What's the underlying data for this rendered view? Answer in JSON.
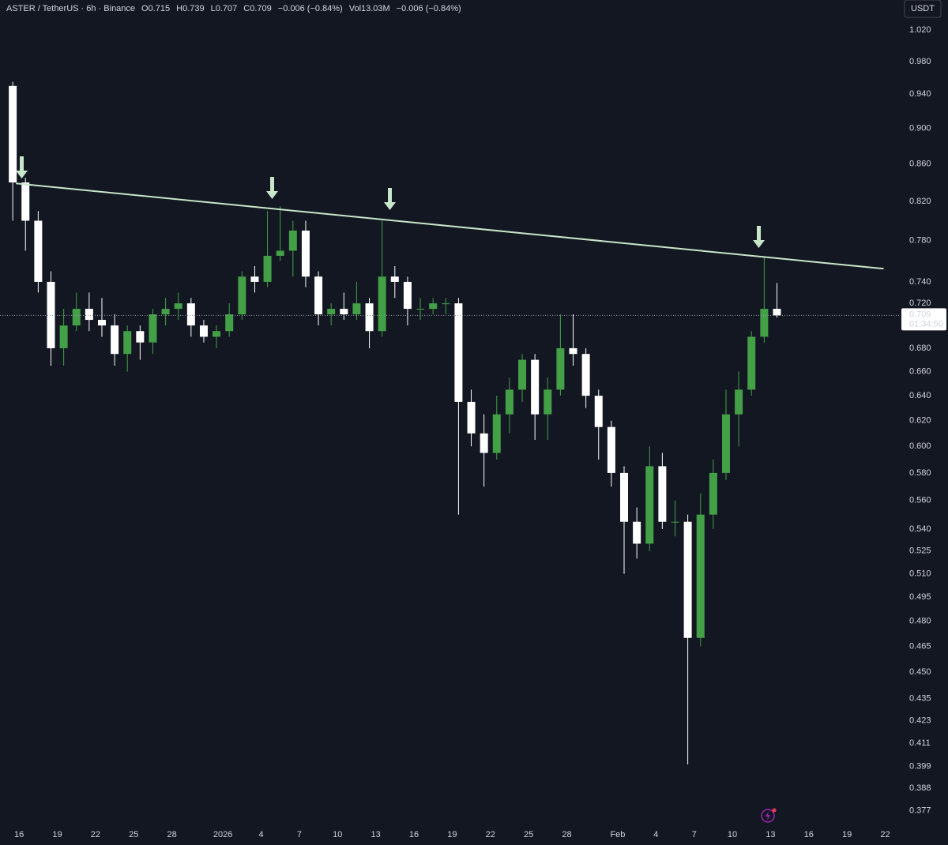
{
  "chart_data": {
    "type": "candlestick",
    "header": [
      "ASTER / TetherUS · 6h · Binance",
      "O0.715",
      "H0.739",
      "L0.707",
      "C0.709",
      "−0.006 (−0.84%)",
      "Vol13.03M",
      "−0.006 (−0.84%)"
    ],
    "currency": "USDT",
    "countdown": "01:34:50",
    "log_scale": true,
    "up_color": "#43a047",
    "down_color": "#ffffff",
    "x": [
      "2025-12-15",
      "2025-12-16",
      "2025-12-17",
      "2025-12-18",
      "2025-12-19",
      "2025-12-20",
      "2025-12-21",
      "2025-12-22",
      "2025-12-23",
      "2025-12-24",
      "2025-12-25",
      "2025-12-26",
      "2025-12-27",
      "2025-12-28",
      "2025-12-29",
      "2025-12-30",
      "2025-12-31",
      "2026-01-01",
      "2026-01-02",
      "2026-01-03",
      "2026-01-04",
      "2026-01-05",
      "2026-01-06",
      "2026-01-07",
      "2026-01-08",
      "2026-01-09",
      "2026-01-10",
      "2026-01-11",
      "2026-01-12",
      "2026-01-13",
      "2026-01-14",
      "2026-01-15",
      "2026-01-16",
      "2026-01-17",
      "2026-01-18",
      "2026-01-19",
      "2026-01-20",
      "2026-01-21",
      "2026-01-22",
      "2026-01-23",
      "2026-01-24",
      "2026-01-25",
      "2026-01-26",
      "2026-01-27",
      "2026-01-28",
      "2026-01-29",
      "2026-01-30",
      "2026-01-31",
      "2026-02-01",
      "2026-02-02",
      "2026-02-03",
      "2026-02-04",
      "2026-02-05",
      "2026-02-06",
      "2026-02-07",
      "2026-02-08",
      "2026-02-09",
      "2026-02-10",
      "2026-02-11",
      "2026-02-12",
      "2026-02-13"
    ],
    "open": [
      0.95,
      0.84,
      0.8,
      0.74,
      0.68,
      0.7,
      0.715,
      0.705,
      0.7,
      0.675,
      0.695,
      0.685,
      0.71,
      0.715,
      0.72,
      0.7,
      0.69,
      0.695,
      0.71,
      0.745,
      0.74,
      0.765,
      0.77,
      0.79,
      0.745,
      0.71,
      0.715,
      0.71,
      0.72,
      0.695,
      0.745,
      0.74,
      0.715,
      0.715,
      0.72,
      0.72,
      0.635,
      0.61,
      0.595,
      0.625,
      0.645,
      0.67,
      0.625,
      0.645,
      0.68,
      0.675,
      0.64,
      0.615,
      0.58,
      0.545,
      0.53,
      0.585,
      0.545,
      0.545,
      0.47,
      0.55,
      0.58,
      0.625,
      0.645,
      0.69,
      0.715
    ],
    "high": [
      0.955,
      0.845,
      0.81,
      0.75,
      0.715,
      0.73,
      0.73,
      0.725,
      0.71,
      0.7,
      0.7,
      0.715,
      0.725,
      0.73,
      0.725,
      0.705,
      0.7,
      0.72,
      0.75,
      0.755,
      0.81,
      0.815,
      0.8,
      0.8,
      0.75,
      0.72,
      0.73,
      0.74,
      0.725,
      0.8,
      0.755,
      0.745,
      0.725,
      0.725,
      0.725,
      0.725,
      0.645,
      0.625,
      0.64,
      0.655,
      0.675,
      0.675,
      0.655,
      0.71,
      0.71,
      0.68,
      0.645,
      0.62,
      0.585,
      0.555,
      0.6,
      0.595,
      0.56,
      0.55,
      0.565,
      0.59,
      0.645,
      0.66,
      0.695,
      0.765,
      0.739
    ],
    "low": [
      0.8,
      0.77,
      0.73,
      0.665,
      0.665,
      0.695,
      0.695,
      0.69,
      0.665,
      0.66,
      0.67,
      0.675,
      0.7,
      0.705,
      0.69,
      0.685,
      0.68,
      0.69,
      0.705,
      0.73,
      0.735,
      0.76,
      0.745,
      0.735,
      0.7,
      0.7,
      0.705,
      0.705,
      0.68,
      0.69,
      0.725,
      0.7,
      0.705,
      0.71,
      0.71,
      0.55,
      0.6,
      0.57,
      0.59,
      0.61,
      0.635,
      0.605,
      0.605,
      0.64,
      0.665,
      0.63,
      0.59,
      0.57,
      0.51,
      0.52,
      0.525,
      0.54,
      0.535,
      0.4,
      0.465,
      0.54,
      0.575,
      0.6,
      0.64,
      0.685,
      0.707
    ],
    "close": [
      0.84,
      0.8,
      0.74,
      0.68,
      0.7,
      0.715,
      0.705,
      0.7,
      0.675,
      0.695,
      0.685,
      0.71,
      0.715,
      0.72,
      0.7,
      0.69,
      0.695,
      0.71,
      0.745,
      0.74,
      0.765,
      0.77,
      0.79,
      0.745,
      0.71,
      0.715,
      0.71,
      0.72,
      0.695,
      0.745,
      0.74,
      0.715,
      0.715,
      0.72,
      0.72,
      0.635,
      0.61,
      0.595,
      0.625,
      0.645,
      0.67,
      0.625,
      0.645,
      0.68,
      0.675,
      0.64,
      0.615,
      0.58,
      0.545,
      0.53,
      0.585,
      0.545,
      0.545,
      0.47,
      0.55,
      0.58,
      0.625,
      0.645,
      0.69,
      0.715,
      0.709
    ],
    "trendline": {
      "x": [
        "2025-12-15T18:00",
        "2026-02-21T21:00"
      ],
      "y": [
        0.839,
        0.7525
      ],
      "color": "#c8e6c9"
    },
    "xlim": [
      "2025-12-14T12:00",
      "2026-02-23T05:00"
    ],
    "xticks": [
      {
        "value": "2025-12-16",
        "label": "16"
      },
      {
        "value": "2025-12-19",
        "label": "19"
      },
      {
        "value": "2025-12-22",
        "label": "22"
      },
      {
        "value": "2025-12-25",
        "label": "25"
      },
      {
        "value": "2025-12-28",
        "label": "28"
      },
      {
        "value": "2026-01-01",
        "label": "2026"
      },
      {
        "value": "2026-01-04",
        "label": "4"
      },
      {
        "value": "2026-01-07",
        "label": "7"
      },
      {
        "value": "2026-01-10",
        "label": "10"
      },
      {
        "value": "2026-01-13",
        "label": "13"
      },
      {
        "value": "2026-01-16",
        "label": "16"
      },
      {
        "value": "2026-01-19",
        "label": "19"
      },
      {
        "value": "2026-01-22",
        "label": "22"
      },
      {
        "value": "2026-01-25",
        "label": "25"
      },
      {
        "value": "2026-01-28",
        "label": "28"
      },
      {
        "value": "2026-02-01",
        "label": "Feb"
      },
      {
        "value": "2026-02-04",
        "label": "4"
      },
      {
        "value": "2026-02-07",
        "label": "7"
      },
      {
        "value": "2026-02-10",
        "label": "10"
      },
      {
        "value": "2026-02-13",
        "label": "13"
      },
      {
        "value": "2026-02-16",
        "label": "16"
      },
      {
        "value": "2026-02-19",
        "label": "19"
      },
      {
        "value": "2026-02-22",
        "label": "22"
      }
    ],
    "ylim": [
      0.372,
      1.06
    ],
    "yticks": [
      {
        "value": 1.02,
        "label": "1.020"
      },
      {
        "value": 0.98,
        "label": "0.980"
      },
      {
        "value": 0.94,
        "label": "0.940"
      },
      {
        "value": 0.9,
        "label": "0.900"
      },
      {
        "value": 0.86,
        "label": "0.860"
      },
      {
        "value": 0.82,
        "label": "0.820"
      },
      {
        "value": 0.78,
        "label": "0.780"
      },
      {
        "value": 0.74,
        "label": "0.740"
      },
      {
        "value": 0.72,
        "label": "0.720"
      },
      {
        "value": 0.68,
        "label": "0.680"
      },
      {
        "value": 0.66,
        "label": "0.660"
      },
      {
        "value": 0.64,
        "label": "0.640"
      },
      {
        "value": 0.62,
        "label": "0.620"
      },
      {
        "value": 0.6,
        "label": "0.600"
      },
      {
        "value": 0.58,
        "label": "0.580"
      },
      {
        "value": 0.56,
        "label": "0.560"
      },
      {
        "value": 0.54,
        "label": "0.540"
      },
      0.525,
      {
        "value": 0.51,
        "label": "0.510"
      },
      0.495,
      {
        "value": 0.48,
        "label": "0.480"
      },
      0.465,
      {
        "value": 0.45,
        "label": "0.450"
      },
      0.435,
      0.423,
      0.411,
      0.399,
      0.388,
      0.377
    ]
  }
}
